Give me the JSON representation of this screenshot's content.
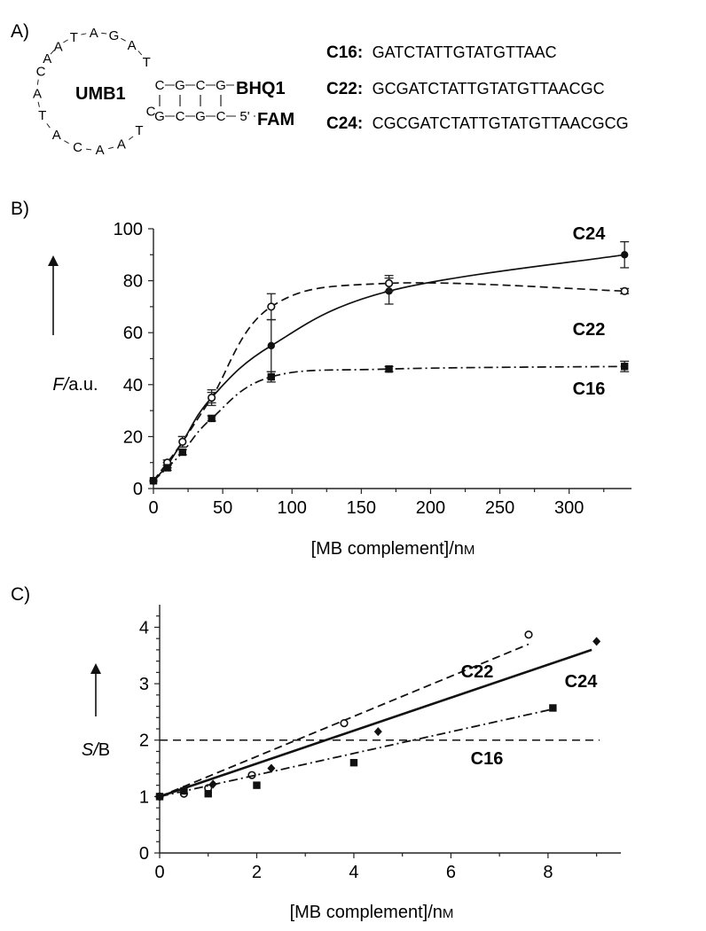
{
  "panels": {
    "a": "A)",
    "b": "B)",
    "c": "C)"
  },
  "beacon": {
    "name": "UMB1",
    "loop": [
      "C",
      "A",
      "T",
      "A",
      "C",
      "A",
      "A",
      "T",
      "T",
      "A",
      "G",
      "A",
      "T",
      "A",
      "A",
      "C"
    ],
    "stem_top": [
      "C",
      "G",
      "C",
      "G"
    ],
    "stem_bottom": [
      "G",
      "C",
      "G",
      "C",
      "5'"
    ],
    "quencher": "BHQ1",
    "fluorophore": "FAM"
  },
  "sequences": [
    {
      "label": "C16:",
      "seq": "GATCTATTGTATGTTAAC"
    },
    {
      "label": "C22:",
      "seq": "GCGATCTATTGTATGTTAACGC"
    },
    {
      "label": "C24:",
      "seq": "CGCGATCTATTGTATGTTAACGCG"
    }
  ],
  "chart_data": [
    {
      "type": "line",
      "panel": "B)",
      "xlabel": "[MB complement]/nM",
      "ylabel": "F/a.u.",
      "x_ticks": [
        0,
        50,
        100,
        150,
        200,
        250,
        300
      ],
      "y_ticks": [
        0,
        20,
        40,
        60,
        80,
        100
      ],
      "xlim": [
        0,
        345
      ],
      "ylim": [
        0,
        100
      ],
      "grid": false,
      "legend": "inline labels at right",
      "series": [
        {
          "name": "C24",
          "marker": "filled-circle",
          "line": "solid",
          "points": [
            [
              0,
              3
            ],
            [
              10,
              9
            ],
            [
              21,
              18
            ],
            [
              42,
              35
            ],
            [
              85,
              55
            ],
            [
              170,
              76
            ],
            [
              340,
              90
            ]
          ],
          "errors": [
            0,
            1,
            2,
            3,
            10,
            5,
            5
          ]
        },
        {
          "name": "C22",
          "marker": "open-circle",
          "line": "dashed",
          "points": [
            [
              0,
              3
            ],
            [
              10,
              10
            ],
            [
              21,
              18
            ],
            [
              42,
              35
            ],
            [
              85,
              70
            ],
            [
              170,
              79
            ],
            [
              340,
              76
            ]
          ],
          "errors": [
            0,
            1,
            2,
            2,
            5,
            3,
            1
          ]
        },
        {
          "name": "C16",
          "marker": "filled-square",
          "line": "dash-dot",
          "points": [
            [
              0,
              3
            ],
            [
              10,
              8
            ],
            [
              21,
              14
            ],
            [
              42,
              27
            ],
            [
              85,
              43
            ],
            [
              170,
              46
            ],
            [
              340,
              47
            ]
          ],
          "errors": [
            0,
            1,
            1,
            1,
            2,
            1,
            2
          ]
        }
      ]
    },
    {
      "type": "scatter",
      "panel": "C)",
      "xlabel": "[MB complement]/nM",
      "ylabel": "S/B",
      "x_ticks": [
        0,
        2,
        4,
        6,
        8
      ],
      "y_ticks": [
        0,
        1,
        2,
        3,
        4
      ],
      "xlim": [
        0,
        9.5
      ],
      "ylim": [
        0,
        4.4
      ],
      "grid": false,
      "threshold": 2,
      "legend": "inline labels near lines",
      "series": [
        {
          "name": "C22",
          "marker": "open-circle",
          "line": "dashed",
          "points": [
            [
              0,
              1.0
            ],
            [
              0.5,
              1.05
            ],
            [
              1.0,
              1.15
            ],
            [
              1.9,
              1.38
            ],
            [
              3.8,
              2.3
            ],
            [
              7.6,
              3.87
            ]
          ],
          "fit": [
            [
              0,
              1.0
            ],
            [
              7.6,
              3.7
            ]
          ]
        },
        {
          "name": "C24",
          "marker": "filled-diamond",
          "line": "solid",
          "points": [
            [
              0,
              1.0
            ],
            [
              0.5,
              1.12
            ],
            [
              1.1,
              1.22
            ],
            [
              2.3,
              1.5
            ],
            [
              4.5,
              2.15
            ],
            [
              9.0,
              3.75
            ]
          ],
          "fit": [
            [
              0,
              1.0
            ],
            [
              8.9,
              3.6
            ]
          ]
        },
        {
          "name": "C16",
          "marker": "filled-square",
          "line": "dash-dot",
          "points": [
            [
              0,
              1.0
            ],
            [
              0.5,
              1.1
            ],
            [
              1.0,
              1.05
            ],
            [
              2.0,
              1.2
            ],
            [
              4.0,
              1.6
            ],
            [
              8.1,
              2.57
            ]
          ],
          "fit": [
            [
              0,
              1.0
            ],
            [
              8.1,
              2.55
            ]
          ]
        }
      ]
    }
  ]
}
